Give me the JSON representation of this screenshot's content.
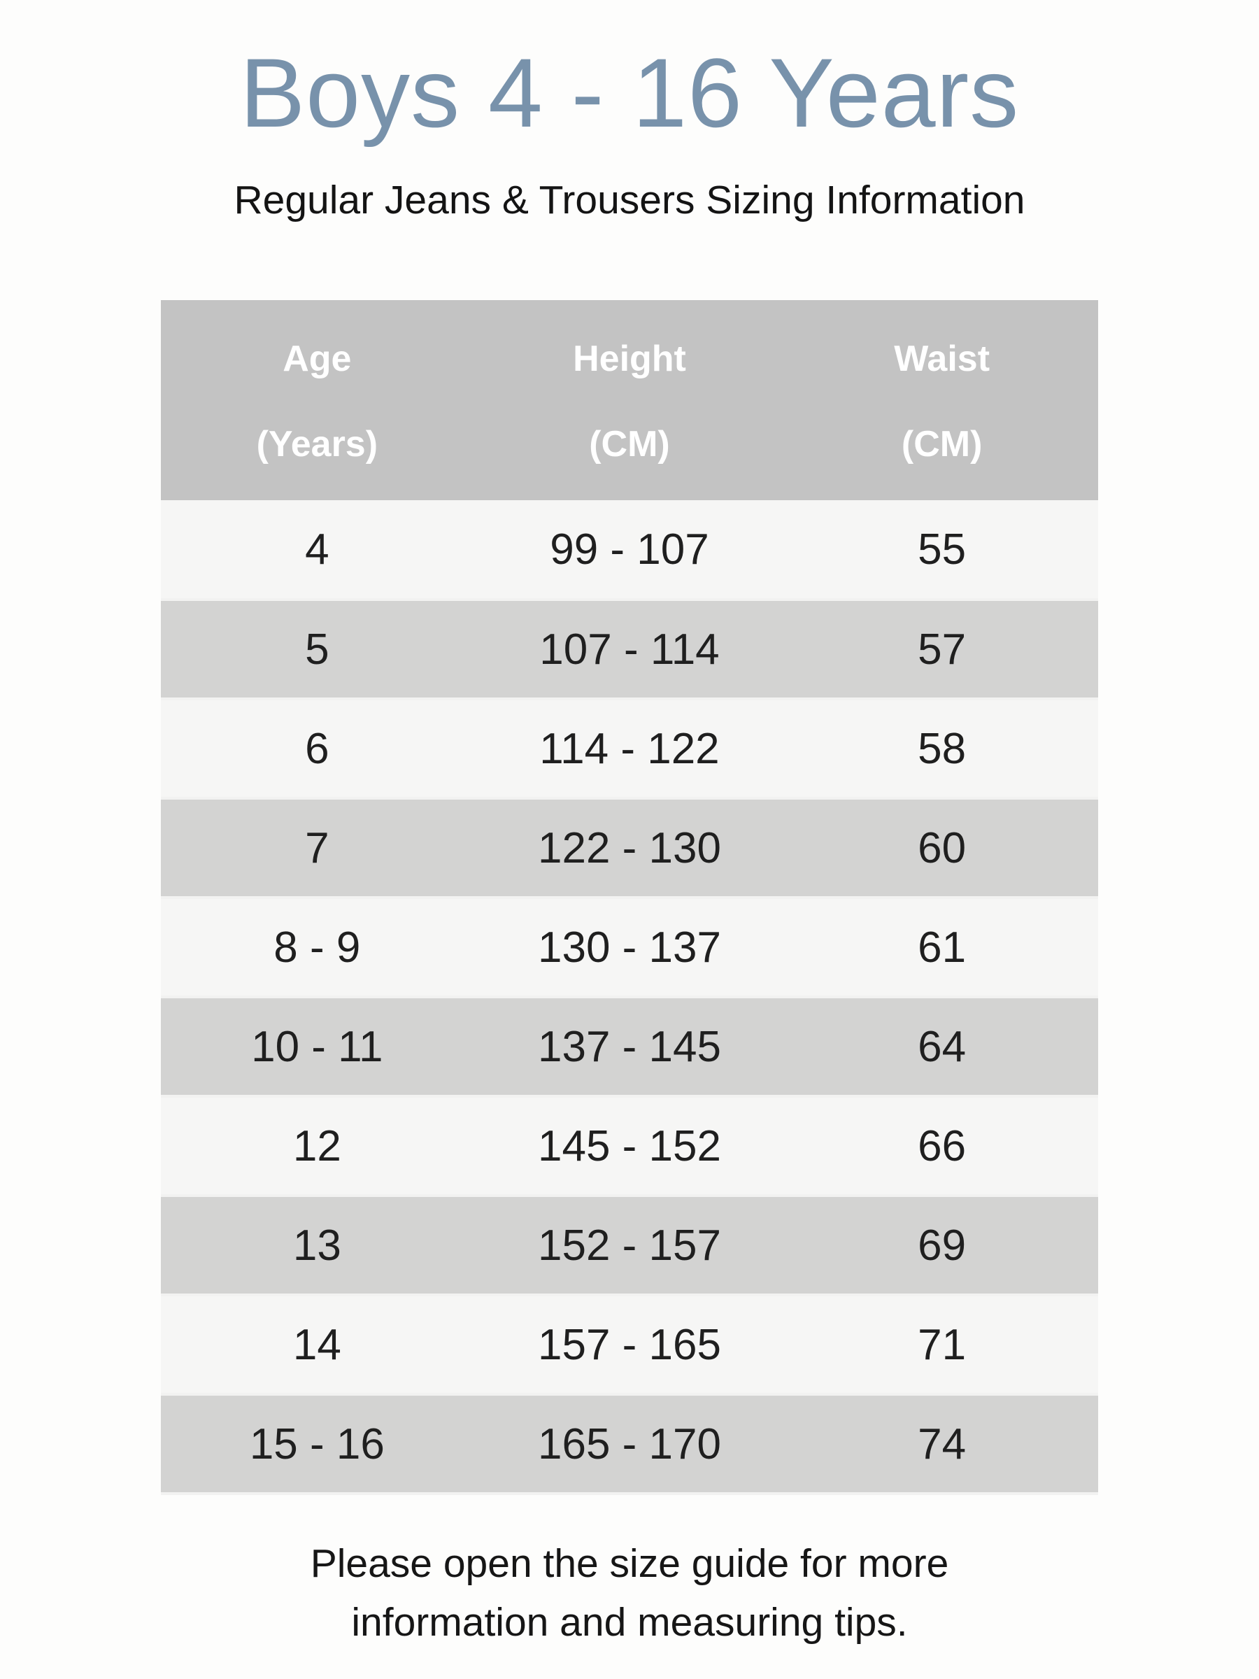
{
  "page": {
    "title": "Boys 4 - 16 Years",
    "subtitle": "Regular Jeans & Trousers Sizing Information",
    "footer_line1": "Please open the size guide for more",
    "footer_line2": "information and measuring tips."
  },
  "colors": {
    "title": "#7892ab",
    "header_bg": "#c3c3c3",
    "header_text": "#ffffff",
    "row_light": "#f6f6f5",
    "row_dark": "#d3d3d2",
    "cell_text": "#1f1f1f",
    "page_bg": "#fdfdfc"
  },
  "table": {
    "columns": [
      {
        "line1": "Age",
        "line2": "(Years)"
      },
      {
        "line1": "Height",
        "line2": "(CM)"
      },
      {
        "line1": "Waist",
        "line2": "(CM)"
      }
    ],
    "rows": [
      {
        "age": "4",
        "height": "99 - 107",
        "waist": "55"
      },
      {
        "age": "5",
        "height": "107 - 114",
        "waist": "57"
      },
      {
        "age": "6",
        "height": "114 - 122",
        "waist": "58"
      },
      {
        "age": "7",
        "height": "122 - 130",
        "waist": "60"
      },
      {
        "age": "8 - 9",
        "height": "130 - 137",
        "waist": "61"
      },
      {
        "age": "10 - 11",
        "height": "137 - 145",
        "waist": "64"
      },
      {
        "age": "12",
        "height": "145 - 152",
        "waist": "66"
      },
      {
        "age": "13",
        "height": "152 - 157",
        "waist": "69"
      },
      {
        "age": "14",
        "height": "157 - 165",
        "waist": "71"
      },
      {
        "age": "15 - 16",
        "height": "165 - 170",
        "waist": "74"
      }
    ]
  }
}
